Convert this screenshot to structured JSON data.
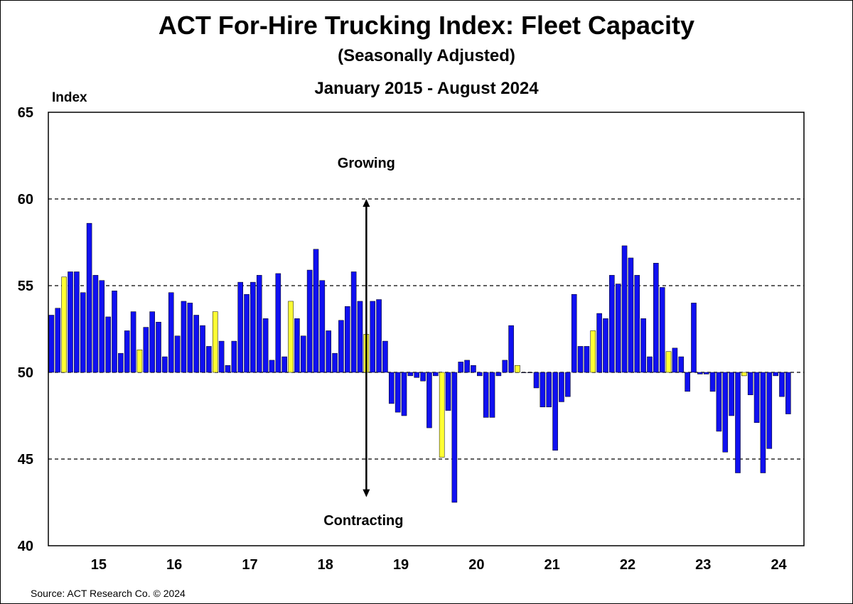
{
  "header": {
    "title": "ACT For-Hire Trucking Index: Fleet Capacity",
    "subtitle": "(Seasonally Adjusted)",
    "period": "January  2015 - August  2024"
  },
  "footer": {
    "source": "Source: ACT Research Co. © 2024"
  },
  "colors": {
    "monthly_bar": "#1010F0",
    "january_bar": "#FFFF33",
    "bar_outline": "#000000",
    "gridline": "#000000"
  },
  "chart_data": {
    "type": "bar",
    "ylabel": "Index",
    "ylim": [
      40,
      65
    ],
    "yticks": [
      "40",
      "45",
      "50",
      "55",
      "60",
      "65"
    ],
    "baseline": 50,
    "gridlines_dashed_at": [
      45,
      50,
      55,
      60
    ],
    "xlabels": [
      "15",
      "16",
      "17",
      "18",
      "19",
      "20",
      "21",
      "22",
      "23",
      "24"
    ],
    "x_range": [
      "2014-11",
      "2024-10"
    ],
    "annotations": {
      "up": "Growing",
      "down": "Contracting",
      "arrow_at": "2019-01",
      "arrow_span": [
        42.8,
        60
      ]
    },
    "highlight": "January of each year shown in yellow",
    "series": [
      {
        "values": [
          {
            "x": "2014-11",
            "y": 53.3
          },
          {
            "x": "2014-12",
            "y": 53.7
          },
          {
            "x": "2015-01",
            "y": 55.5
          },
          {
            "x": "2015-02",
            "y": 55.8
          },
          {
            "x": "2015-03",
            "y": 55.8
          },
          {
            "x": "2015-04",
            "y": 54.6
          },
          {
            "x": "2015-05",
            "y": 58.6
          },
          {
            "x": "2015-06",
            "y": 55.6
          },
          {
            "x": "2015-07",
            "y": 55.3
          },
          {
            "x": "2015-08",
            "y": 53.2
          },
          {
            "x": "2015-09",
            "y": 54.7
          },
          {
            "x": "2015-10",
            "y": 51.1
          },
          {
            "x": "2015-11",
            "y": 52.4
          },
          {
            "x": "2015-12",
            "y": 53.5
          },
          {
            "x": "2016-01",
            "y": 51.3
          },
          {
            "x": "2016-02",
            "y": 52.6
          },
          {
            "x": "2016-03",
            "y": 53.5
          },
          {
            "x": "2016-04",
            "y": 52.9
          },
          {
            "x": "2016-05",
            "y": 50.9
          },
          {
            "x": "2016-06",
            "y": 54.6
          },
          {
            "x": "2016-07",
            "y": 52.1
          },
          {
            "x": "2016-08",
            "y": 54.1
          },
          {
            "x": "2016-09",
            "y": 54.0
          },
          {
            "x": "2016-10",
            "y": 53.3
          },
          {
            "x": "2016-11",
            "y": 52.7
          },
          {
            "x": "2016-12",
            "y": 51.5
          },
          {
            "x": "2017-01",
            "y": 53.5
          },
          {
            "x": "2017-02",
            "y": 51.8
          },
          {
            "x": "2017-03",
            "y": 50.4
          },
          {
            "x": "2017-04",
            "y": 51.8
          },
          {
            "x": "2017-05",
            "y": 55.2
          },
          {
            "x": "2017-06",
            "y": 54.5
          },
          {
            "x": "2017-07",
            "y": 55.2
          },
          {
            "x": "2017-08",
            "y": 55.6
          },
          {
            "x": "2017-09",
            "y": 53.1
          },
          {
            "x": "2017-10",
            "y": 50.7
          },
          {
            "x": "2017-11",
            "y": 55.7
          },
          {
            "x": "2017-12",
            "y": 50.9
          },
          {
            "x": "2018-01",
            "y": 54.1
          },
          {
            "x": "2018-02",
            "y": 53.1
          },
          {
            "x": "2018-03",
            "y": 52.1
          },
          {
            "x": "2018-04",
            "y": 55.9
          },
          {
            "x": "2018-05",
            "y": 57.1
          },
          {
            "x": "2018-06",
            "y": 55.3
          },
          {
            "x": "2018-07",
            "y": 52.4
          },
          {
            "x": "2018-08",
            "y": 51.1
          },
          {
            "x": "2018-09",
            "y": 53.0
          },
          {
            "x": "2018-10",
            "y": 53.8
          },
          {
            "x": "2018-11",
            "y": 55.8
          },
          {
            "x": "2018-12",
            "y": 54.1
          },
          {
            "x": "2019-01",
            "y": 52.2
          },
          {
            "x": "2019-02",
            "y": 54.1
          },
          {
            "x": "2019-03",
            "y": 54.2
          },
          {
            "x": "2019-04",
            "y": 51.8
          },
          {
            "x": "2019-05",
            "y": 48.2
          },
          {
            "x": "2019-06",
            "y": 47.7
          },
          {
            "x": "2019-07",
            "y": 47.5
          },
          {
            "x": "2019-08",
            "y": 49.8
          },
          {
            "x": "2019-09",
            "y": 49.7
          },
          {
            "x": "2019-10",
            "y": 49.5
          },
          {
            "x": "2019-11",
            "y": 46.8
          },
          {
            "x": "2019-12",
            "y": 49.8
          },
          {
            "x": "2020-01",
            "y": 45.1
          },
          {
            "x": "2020-02",
            "y": 47.8
          },
          {
            "x": "2020-03",
            "y": 42.5
          },
          {
            "x": "2020-04",
            "y": 50.6
          },
          {
            "x": "2020-05",
            "y": 50.7
          },
          {
            "x": "2020-06",
            "y": 50.4
          },
          {
            "x": "2020-07",
            "y": 49.8
          },
          {
            "x": "2020-08",
            "y": 47.4
          },
          {
            "x": "2020-09",
            "y": 47.4
          },
          {
            "x": "2020-10",
            "y": 49.8
          },
          {
            "x": "2020-11",
            "y": 50.7
          },
          {
            "x": "2020-12",
            "y": 52.7
          },
          {
            "x": "2021-01",
            "y": 50.4
          },
          {
            "x": "2021-02",
            "y": 50.0
          },
          {
            "x": "2021-03",
            "y": 50.0
          },
          {
            "x": "2021-04",
            "y": 49.1
          },
          {
            "x": "2021-05",
            "y": 48.0
          },
          {
            "x": "2021-06",
            "y": 48.0
          },
          {
            "x": "2021-07",
            "y": 45.5
          },
          {
            "x": "2021-08",
            "y": 48.3
          },
          {
            "x": "2021-09",
            "y": 48.6
          },
          {
            "x": "2021-10",
            "y": 54.5
          },
          {
            "x": "2021-11",
            "y": 51.5
          },
          {
            "x": "2021-12",
            "y": 51.5
          },
          {
            "x": "2022-01",
            "y": 52.4
          },
          {
            "x": "2022-02",
            "y": 53.4
          },
          {
            "x": "2022-03",
            "y": 53.1
          },
          {
            "x": "2022-04",
            "y": 55.6
          },
          {
            "x": "2022-05",
            "y": 55.1
          },
          {
            "x": "2022-06",
            "y": 57.3
          },
          {
            "x": "2022-07",
            "y": 56.6
          },
          {
            "x": "2022-08",
            "y": 55.6
          },
          {
            "x": "2022-09",
            "y": 53.1
          },
          {
            "x": "2022-10",
            "y": 50.9
          },
          {
            "x": "2022-11",
            "y": 56.3
          },
          {
            "x": "2022-12",
            "y": 54.9
          },
          {
            "x": "2023-01",
            "y": 51.2
          },
          {
            "x": "2023-02",
            "y": 51.4
          },
          {
            "x": "2023-03",
            "y": 50.9
          },
          {
            "x": "2023-04",
            "y": 48.9
          },
          {
            "x": "2023-05",
            "y": 54.0
          },
          {
            "x": "2023-06",
            "y": 49.9
          },
          {
            "x": "2023-07",
            "y": 49.9
          },
          {
            "x": "2023-08",
            "y": 48.9
          },
          {
            "x": "2023-09",
            "y": 46.6
          },
          {
            "x": "2023-10",
            "y": 45.4
          },
          {
            "x": "2023-11",
            "y": 47.5
          },
          {
            "x": "2023-12",
            "y": 44.2
          },
          {
            "x": "2024-01",
            "y": 49.8
          },
          {
            "x": "2024-02",
            "y": 48.7
          },
          {
            "x": "2024-03",
            "y": 47.1
          },
          {
            "x": "2024-04",
            "y": 44.2
          },
          {
            "x": "2024-05",
            "y": 45.6
          },
          {
            "x": "2024-06",
            "y": 49.8
          },
          {
            "x": "2024-07",
            "y": 48.6
          },
          {
            "x": "2024-08",
            "y": 47.6
          }
        ]
      }
    ]
  }
}
